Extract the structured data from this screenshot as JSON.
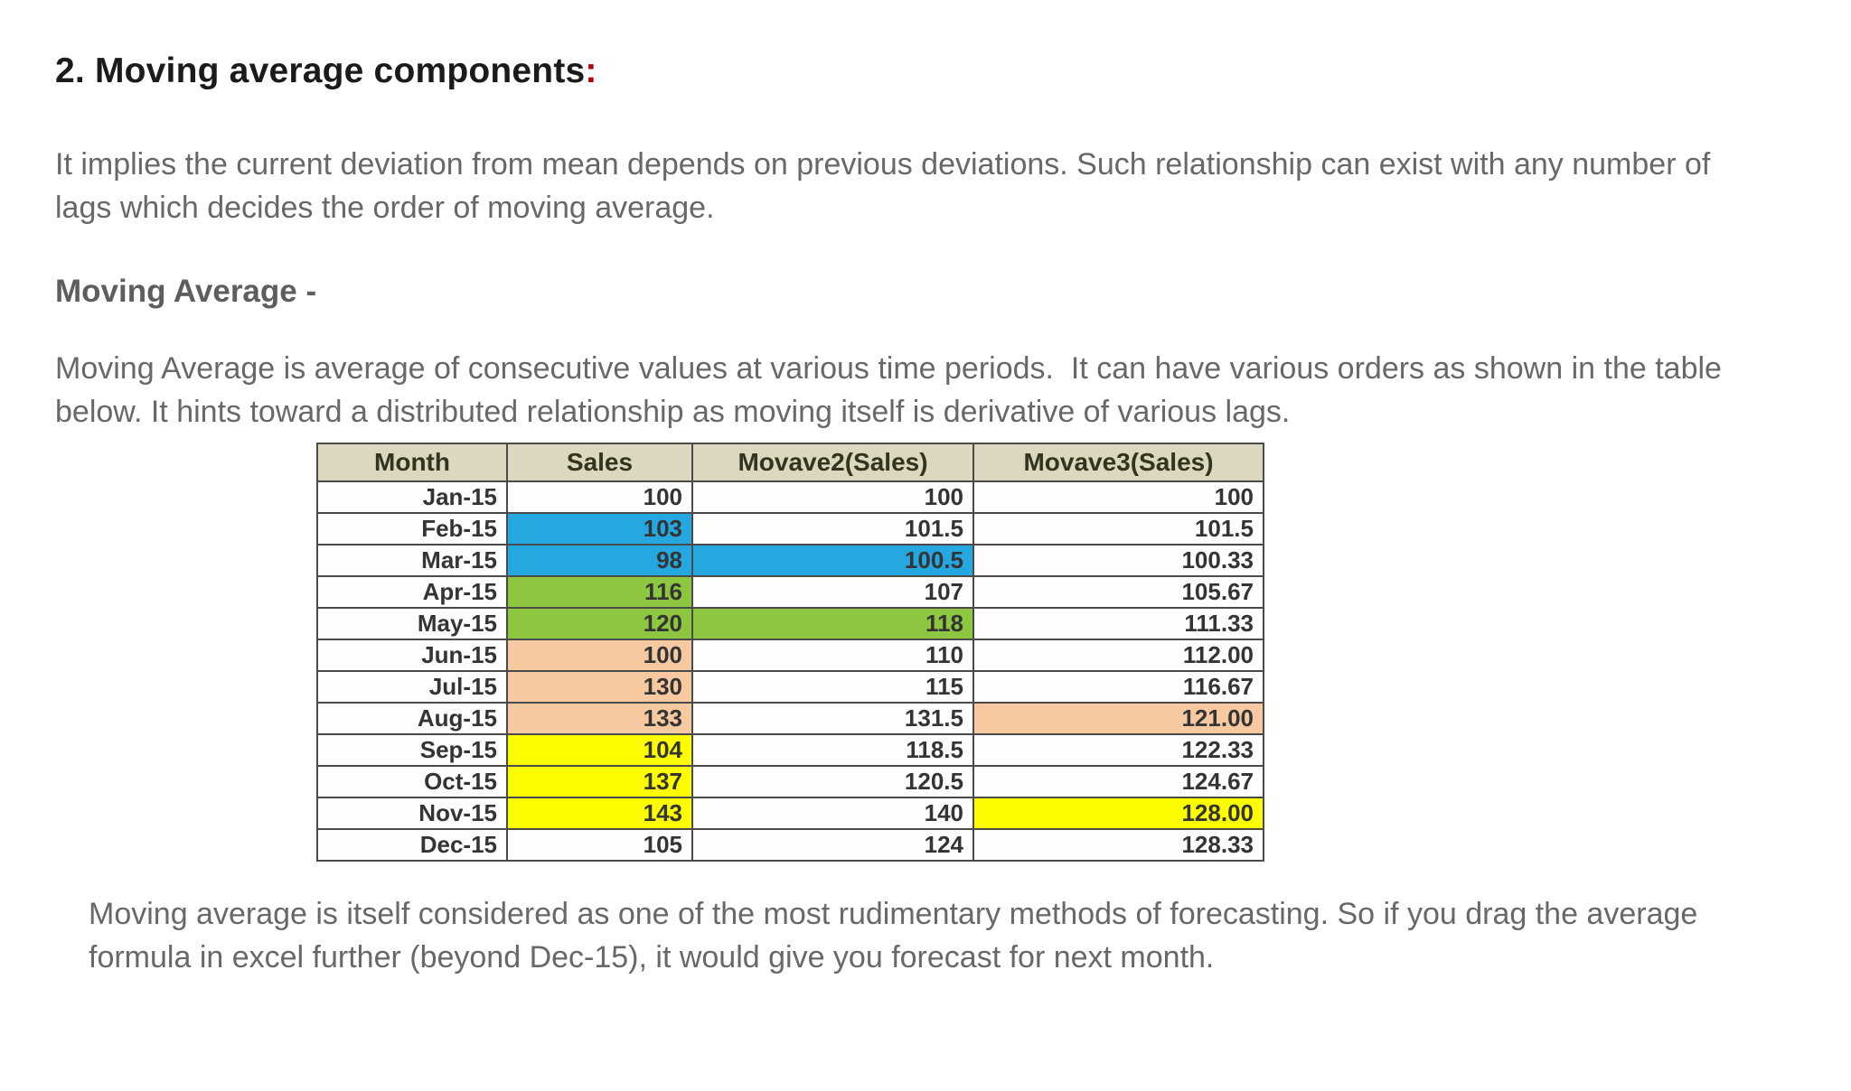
{
  "heading": {
    "text": "2. Moving average components",
    "colon": ":",
    "text_color": "#1b1b1b",
    "colon_color": "#b30000"
  },
  "paragraphs": {
    "intro": "It implies the current deviation from mean depends on previous deviations. Such relationship can exist with any number of lags which decides the order of moving average.",
    "description": "Moving Average is average of consecutive values at various time periods.  It can have various orders as shown in the table below. It hints toward a distributed relationship as moving itself is derivative of various lags.",
    "footer": "Moving average is itself considered as one of the most rudimentary methods of forecasting. So if you drag the average formula in excel further (beyond Dec-15), it would give you forecast for next month."
  },
  "subheading": "Moving Average -",
  "colors": {
    "body_text": "#686868",
    "table_header_bg": "#dbd8bf",
    "table_border": "#4a4a4a",
    "highlight_blue": "#25a8e0",
    "highlight_green": "#8dc63f",
    "highlight_peach": "#f6c9a0",
    "highlight_yellow": "#fdfd00"
  },
  "table": {
    "columns": [
      {
        "key": "month",
        "label": "Month"
      },
      {
        "key": "sales",
        "label": "Sales"
      },
      {
        "key": "movave2",
        "label": "Movave2(Sales)"
      },
      {
        "key": "movave3",
        "label": "Movave3(Sales)"
      }
    ],
    "rows": [
      {
        "month": "Jan-15",
        "sales": "100",
        "movave2": "100",
        "movave3": "100",
        "highlights": {}
      },
      {
        "month": "Feb-15",
        "sales": "103",
        "movave2": "101.5",
        "movave3": "101.5",
        "highlights": {
          "sales": "blue"
        }
      },
      {
        "month": "Mar-15",
        "sales": "98",
        "movave2": "100.5",
        "movave3": "100.33",
        "highlights": {
          "sales": "blue",
          "movave2": "blue"
        }
      },
      {
        "month": "Apr-15",
        "sales": "116",
        "movave2": "107",
        "movave3": "105.67",
        "highlights": {
          "sales": "green"
        }
      },
      {
        "month": "May-15",
        "sales": "120",
        "movave2": "118",
        "movave3": "111.33",
        "highlights": {
          "sales": "green",
          "movave2": "green"
        }
      },
      {
        "month": "Jun-15",
        "sales": "100",
        "movave2": "110",
        "movave3": "112.00",
        "highlights": {
          "sales": "peach"
        }
      },
      {
        "month": "Jul-15",
        "sales": "130",
        "movave2": "115",
        "movave3": "116.67",
        "highlights": {
          "sales": "peach"
        }
      },
      {
        "month": "Aug-15",
        "sales": "133",
        "movave2": "131.5",
        "movave3": "121.00",
        "highlights": {
          "sales": "peach",
          "movave3": "peach"
        }
      },
      {
        "month": "Sep-15",
        "sales": "104",
        "movave2": "118.5",
        "movave3": "122.33",
        "highlights": {
          "sales": "yellow"
        }
      },
      {
        "month": "Oct-15",
        "sales": "137",
        "movave2": "120.5",
        "movave3": "124.67",
        "highlights": {
          "sales": "yellow"
        }
      },
      {
        "month": "Nov-15",
        "sales": "143",
        "movave2": "140",
        "movave3": "128.00",
        "highlights": {
          "sales": "yellow",
          "movave3": "yellow"
        }
      },
      {
        "month": "Dec-15",
        "sales": "105",
        "movave2": "124",
        "movave3": "128.33",
        "highlights": {}
      }
    ]
  },
  "chart_data": {
    "type": "table",
    "categories": [
      "Jan-15",
      "Feb-15",
      "Mar-15",
      "Apr-15",
      "May-15",
      "Jun-15",
      "Jul-15",
      "Aug-15",
      "Sep-15",
      "Oct-15",
      "Nov-15",
      "Dec-15"
    ],
    "series": [
      {
        "name": "Sales",
        "values": [
          100,
          103,
          98,
          116,
          120,
          100,
          130,
          133,
          104,
          137,
          143,
          105
        ]
      },
      {
        "name": "Movave2(Sales)",
        "values": [
          100,
          101.5,
          100.5,
          107,
          118,
          110,
          115,
          131.5,
          118.5,
          120.5,
          140,
          124
        ]
      },
      {
        "name": "Movave3(Sales)",
        "values": [
          100,
          101.5,
          100.33,
          105.67,
          111.33,
          112.0,
          116.67,
          121.0,
          122.33,
          124.67,
          128.0,
          128.33
        ]
      }
    ]
  }
}
